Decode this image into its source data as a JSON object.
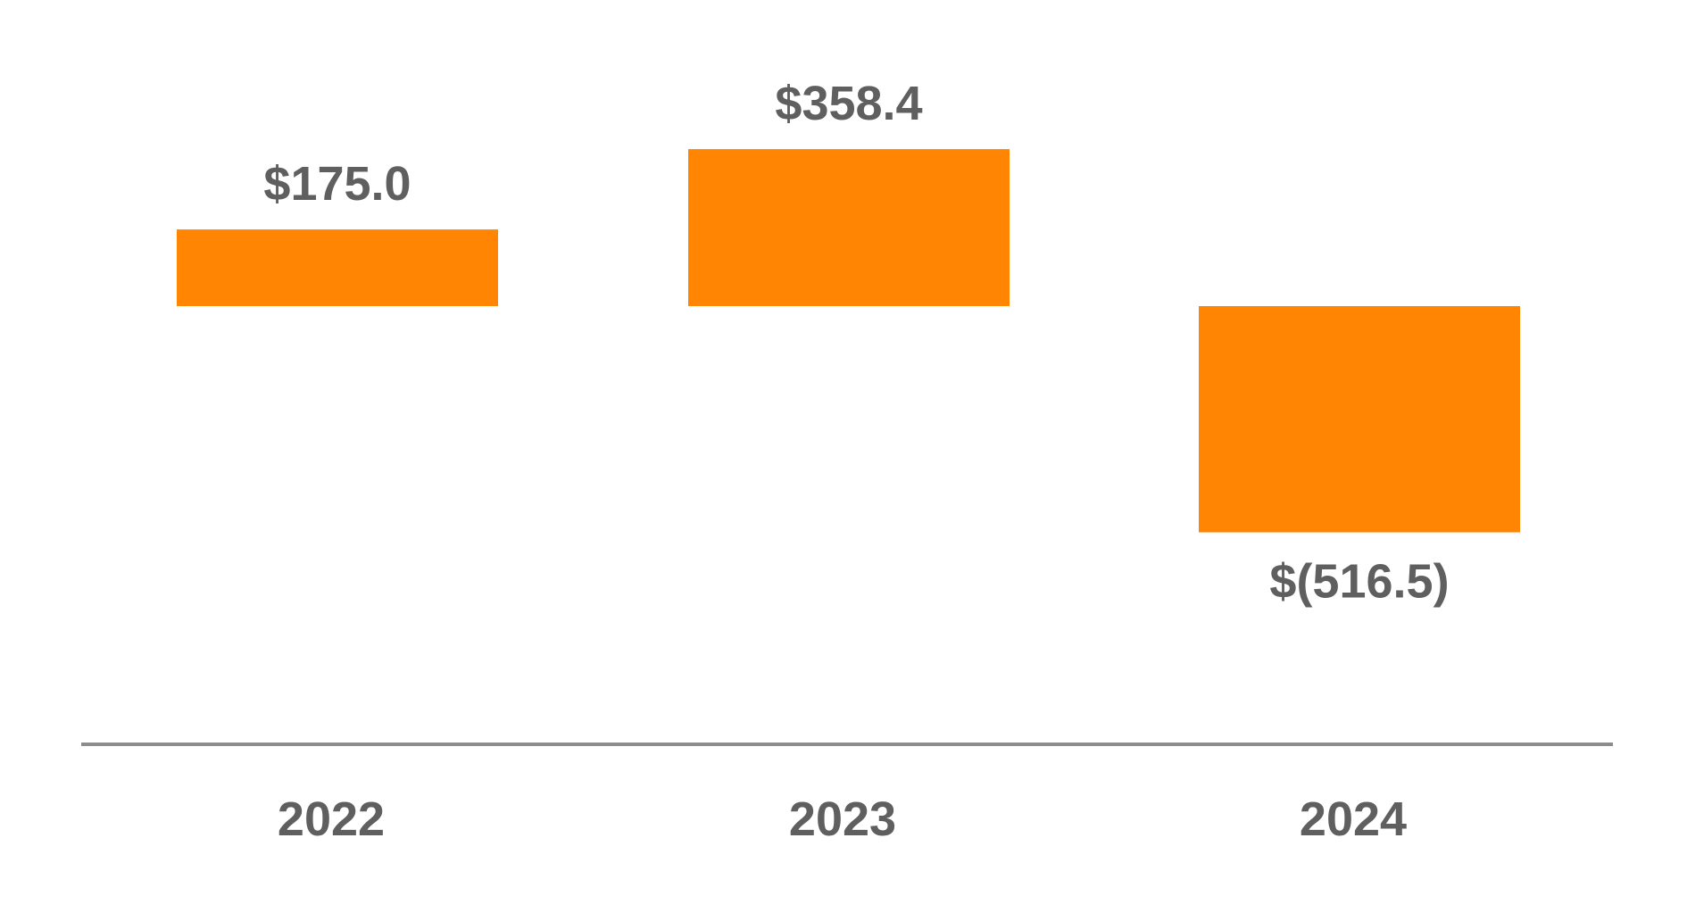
{
  "chart_data": {
    "type": "bar",
    "categories": [
      "2022",
      "2023",
      "2024"
    ],
    "values": [
      175.0,
      358.4,
      -516.5
    ],
    "value_labels": [
      "$175.0",
      "$358.4",
      "$(516.5)"
    ],
    "title": "",
    "xlabel": "",
    "ylabel": "",
    "ylim": [
      -1000,
      560
    ],
    "grid": false,
    "legend": "none",
    "bar_color": "#ff8503",
    "axis_color": "#8c8c8c",
    "text_color": "#5f5f5f"
  }
}
